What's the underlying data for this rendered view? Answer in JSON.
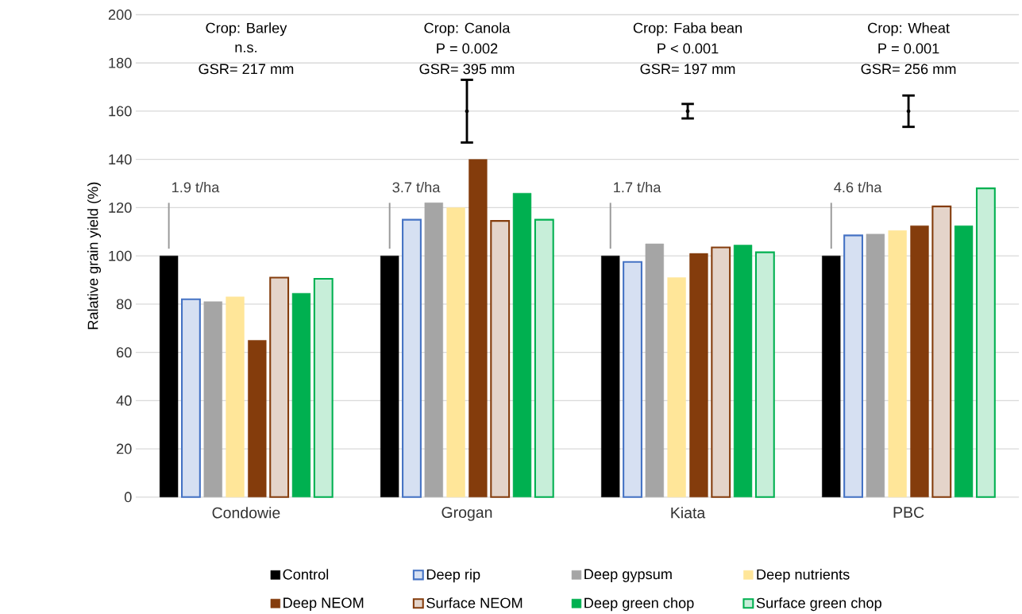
{
  "chart_data": {
    "type": "bar",
    "ylabel": "Ralative grain yield (%)",
    "categories": [
      "Condowie",
      "Grogan",
      "Kiata",
      "PBC"
    ],
    "series": [
      {
        "name": "Control",
        "color": "#000000",
        "values": [
          100,
          100,
          100,
          100
        ]
      },
      {
        "name": "Deep rip",
        "color": "#4472c4",
        "values": [
          82,
          115,
          97.5,
          108.5
        ]
      },
      {
        "name": "Deep gypsum",
        "color": "#a5a5a5",
        "values": [
          81,
          122,
          105,
          109
        ]
      },
      {
        "name": "Deep nutrients",
        "color": "#ffe699",
        "values": [
          83,
          120,
          91,
          110.5
        ]
      },
      {
        "name": "Deep NEOM",
        "color": "#843c0c",
        "values": [
          65,
          140,
          101,
          112.5
        ]
      },
      {
        "name": "Surface NEOM",
        "color": "#843c0c",
        "values": [
          91,
          114.5,
          103.5,
          120.5
        ]
      },
      {
        "name": "Deep green chop",
        "color": "#00b050",
        "values": [
          84.5,
          126,
          104.5,
          112.5
        ]
      },
      {
        "name": "Surface green chop",
        "color": "#00b050",
        "values": [
          90.5,
          115,
          101.5,
          128
        ]
      },
      {
        "type": "scatter",
        "marker": "circle",
        "color": "#000000",
        "values": [
          null,
          160,
          160,
          160
        ],
        "errors": [
          null,
          13,
          3,
          6.5
        ]
      }
    ],
    "ylim": [
      0,
      200
    ],
    "yticks": [
      0,
      20,
      40,
      60,
      80,
      100,
      120,
      140,
      160,
      180,
      200
    ],
    "grid": "y",
    "legend": "bottom",
    "annotations": [
      "Crop: Barley",
      "n.s.",
      "GSR= 217 mm",
      "Crop: Canola",
      "P = 0.002",
      "GSR= 395 mm",
      "Crop: Faba bean",
      "P < 0.001",
      "GSR= 197 mm",
      "Crop: Wheat",
      "P = 0.001",
      "GSR= 256 mm",
      "1.9 t/ha",
      "3.7 t/ha",
      "1.7 t/ha",
      "4.6 t/ha"
    ]
  }
}
